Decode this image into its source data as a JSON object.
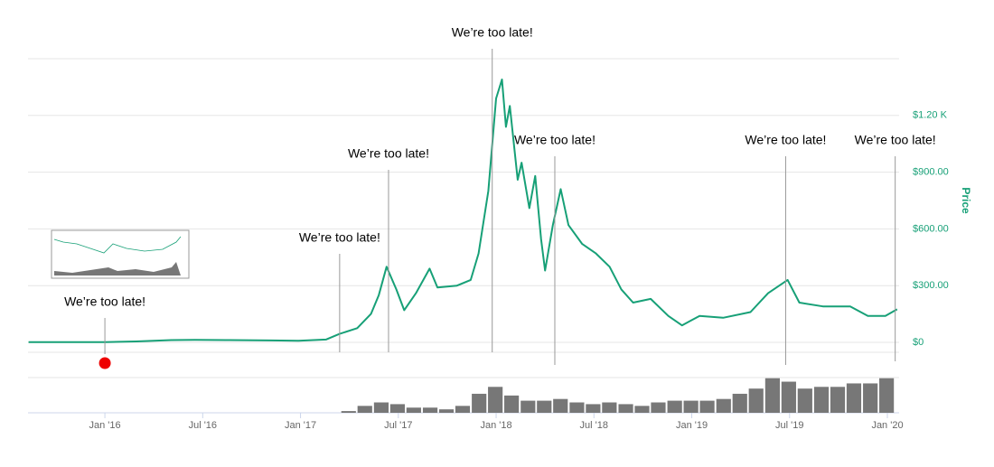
{
  "chart_data": {
    "type": "line",
    "y_label": "Price",
    "color": "#17a077",
    "x": [
      2015.61,
      2015.74,
      2016.0,
      2016.16,
      2016.34,
      2016.46,
      2016.62,
      2016.85,
      2016.99,
      2017.13,
      2017.2,
      2017.29,
      2017.36,
      2017.4,
      2017.44,
      2017.49,
      2017.53,
      2017.59,
      2017.66,
      2017.7,
      2017.8,
      2017.87,
      2017.91,
      2017.96,
      2018.0,
      2018.03,
      2018.05,
      2018.07,
      2018.11,
      2018.13,
      2018.17,
      2018.2,
      2018.23,
      2018.25,
      2018.29,
      2018.33,
      2018.37,
      2018.44,
      2018.51,
      2018.58,
      2018.64,
      2018.7,
      2018.79,
      2018.88,
      2018.95,
      2019.04,
      2019.16,
      2019.3,
      2019.39,
      2019.49,
      2019.55,
      2019.67,
      2019.81,
      2019.9,
      2019.99,
      2020.05
    ],
    "values": [
      1,
      1,
      1,
      5,
      12,
      13,
      12,
      10,
      8,
      15,
      45,
      75,
      150,
      250,
      400,
      280,
      170,
      260,
      390,
      290,
      300,
      330,
      470,
      800,
      1290,
      1390,
      1140,
      1250,
      860,
      950,
      710,
      880,
      545,
      380,
      620,
      810,
      620,
      520,
      470,
      400,
      280,
      210,
      230,
      140,
      90,
      140,
      130,
      160,
      260,
      330,
      210,
      190,
      190,
      140,
      140,
      175
    ],
    "xlim": [
      2015.607,
      2020.06
    ],
    "xticks": [
      {
        "value": 2016,
        "label": "Jan '16"
      },
      {
        "value": 2016.5,
        "label": "Jul '16"
      },
      {
        "value": 2017,
        "label": "Jan '17"
      },
      {
        "value": 2017.5,
        "label": "Jul '17"
      },
      {
        "value": 2018,
        "label": "Jan '18"
      },
      {
        "value": 2018.5,
        "label": "Jul '18"
      },
      {
        "value": 2019,
        "label": "Jan '19"
      },
      {
        "value": 2019.5,
        "label": "Jul '19"
      },
      {
        "value": 2020,
        "label": "Jan '20"
      }
    ],
    "ylim": [
      0,
      1500
    ],
    "yticks": [
      {
        "value": 0,
        "label": "$0"
      },
      {
        "value": 300,
        "label": "$300.00"
      },
      {
        "value": 600,
        "label": "$600.00"
      },
      {
        "value": 900,
        "label": "$900.00"
      },
      {
        "value": 1200,
        "label": "$1.20 K"
      }
    ],
    "grid": true,
    "volume": {
      "color": "#777777",
      "ylim": [
        0,
        70
      ],
      "x": [
        2017.25,
        2017.333,
        2017.417,
        2017.5,
        2017.583,
        2017.667,
        2017.75,
        2017.833,
        2017.917,
        2018.0,
        2018.083,
        2018.167,
        2018.25,
        2018.333,
        2018.417,
        2018.5,
        2018.583,
        2018.667,
        2018.75,
        2018.833,
        2018.917,
        2019.0,
        2019.083,
        2019.167,
        2019.25,
        2019.333,
        2019.417,
        2019.5,
        2019.583,
        2019.667,
        2019.75,
        2019.833,
        2019.917,
        2020.0
      ],
      "values": [
        2,
        8,
        12,
        10,
        6,
        6,
        4,
        8,
        22,
        30,
        20,
        14,
        14,
        16,
        12,
        10,
        12,
        10,
        8,
        12,
        14,
        14,
        14,
        16,
        22,
        28,
        40,
        36,
        28,
        30,
        30,
        34,
        34,
        40
      ]
    },
    "annotations": [
      {
        "x": 2016.0,
        "text": "We’re too late!",
        "marker_color": "#ee0000"
      },
      {
        "x": 2017.2,
        "text": "We’re too late!"
      },
      {
        "x": 2017.45,
        "text": "We’re too late!"
      },
      {
        "x": 2017.98,
        "text": "We’re too late!"
      },
      {
        "x": 2018.3,
        "text": "We’re too late!"
      },
      {
        "x": 2019.48,
        "text": "We’re too late!"
      },
      {
        "x": 2020.04,
        "text": "We’re too late!"
      }
    ]
  }
}
